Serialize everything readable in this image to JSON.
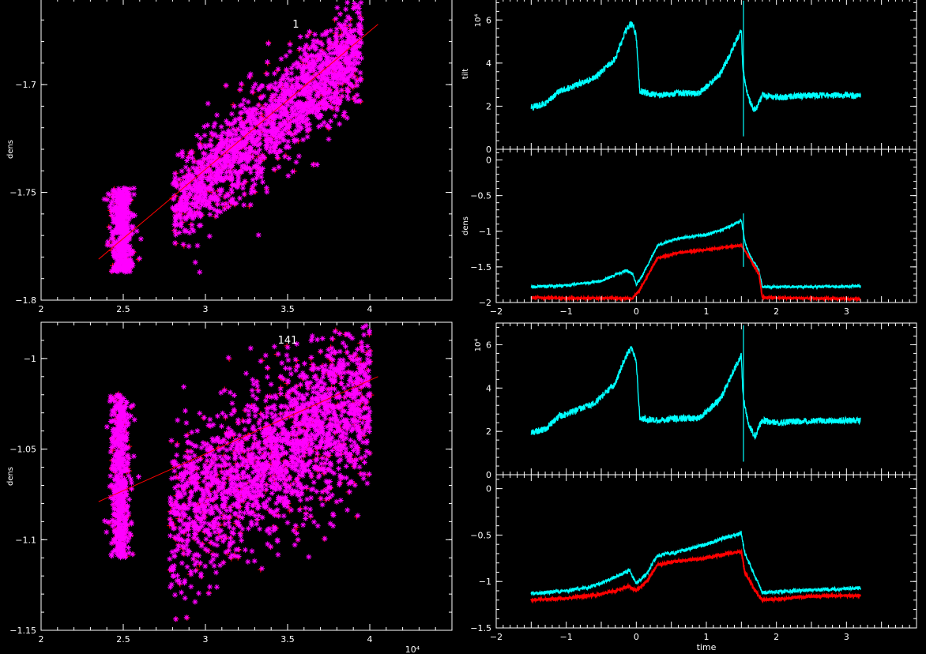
{
  "colors": {
    "background": "#000000",
    "axis": "#ffffff",
    "scatter_star": "#ff00ff",
    "scatter_plus": "#ff0000",
    "fit_line": "#ff0000",
    "series_cyan": "#00ffff",
    "series_red": "#ff0000"
  },
  "chart_data": [
    {
      "id": "scatter-top",
      "type": "scatter",
      "annotation": "1",
      "xlabel": "",
      "ylabel": "dens",
      "xlim": [
        2,
        4.5
      ],
      "ylim": [
        -1.8,
        -1.66
      ],
      "xticks": [
        "2",
        "2.5",
        "3",
        "3.5",
        "4"
      ],
      "xtick_values": [
        2,
        2.5,
        3,
        3.5,
        4
      ],
      "yticks": [
        "−1.8",
        "−1.75",
        "−1.7"
      ],
      "ytick_values": [
        -1.8,
        -1.75,
        -1.7
      ],
      "clusters": [
        {
          "x_center": 2.49,
          "x_spread": 0.055,
          "y_min": -1.787,
          "y_max": -1.748,
          "count": 450
        },
        {
          "x_min": 2.8,
          "x_max": 3.95,
          "y_at_xmin": -1.758,
          "y_at_xmax": -1.68,
          "band": 0.011,
          "count": 1600
        }
      ],
      "fit": {
        "x": [
          2.35,
          4.05
        ],
        "y": [
          -1.781,
          -1.672
        ]
      }
    },
    {
      "id": "timeseries-top-a",
      "type": "line",
      "xlabel": "",
      "ylabel": "tilt",
      "yscale_label": "10⁴",
      "xlim": [
        -2,
        4
      ],
      "ylim": [
        0,
        7
      ],
      "yticks": [
        "0",
        "2",
        "4",
        "6"
      ],
      "ytick_values": [
        0,
        2,
        4,
        6
      ],
      "series": [
        {
          "color": "cyan",
          "x": [
            -1.5,
            -1.3,
            -1.2,
            -1.1,
            -1.0,
            -0.6,
            -0.3,
            -0.15,
            -0.08,
            -0.05,
            0.0,
            0.05,
            0.3,
            0.6,
            0.9,
            1.2,
            1.35,
            1.45,
            1.5,
            1.52,
            1.55,
            1.6,
            1.65,
            1.7,
            1.75,
            1.8,
            2.0,
            2.5,
            3.0,
            3.2
          ],
          "y": [
            1.95,
            2.1,
            2.4,
            2.7,
            2.8,
            3.3,
            4.2,
            5.5,
            5.8,
            5.8,
            5.2,
            2.7,
            2.5,
            2.6,
            2.6,
            3.5,
            4.5,
            5.2,
            5.5,
            3.8,
            3.1,
            2.4,
            2.0,
            1.8,
            2.2,
            2.5,
            2.4,
            2.5,
            2.5,
            2.5
          ],
          "noise": 0.15
        }
      ],
      "spikes": [
        {
          "x": 1.53,
          "y_min": 0.6,
          "y_max": 6.9
        }
      ]
    },
    {
      "id": "timeseries-top-b",
      "type": "line",
      "xlabel": "",
      "ylabel": "dens",
      "xlim": [
        -2,
        4
      ],
      "ylim": [
        -2,
        0.15
      ],
      "xticks": [
        "−2",
        "−1",
        "0",
        "1",
        "2",
        "3"
      ],
      "xtick_values": [
        -2,
        -1,
        0,
        1,
        2,
        3
      ],
      "yticks": [
        "−2",
        "−1.5",
        "−1",
        "−0.5",
        "0"
      ],
      "ytick_values": [
        -2,
        -1.5,
        -1,
        -0.5,
        0
      ],
      "series": [
        {
          "color": "cyan",
          "x": [
            -1.5,
            -1.0,
            -0.5,
            -0.15,
            -0.05,
            0.0,
            0.1,
            0.3,
            0.6,
            1.0,
            1.3,
            1.5,
            1.55,
            1.6,
            1.75,
            1.8,
            2.5,
            3.2
          ],
          "y": [
            -1.78,
            -1.76,
            -1.7,
            -1.55,
            -1.6,
            -1.75,
            -1.6,
            -1.2,
            -1.1,
            -1.05,
            -0.95,
            -0.85,
            -1.15,
            -1.3,
            -1.55,
            -1.78,
            -1.78,
            -1.77
          ],
          "noise": 0.02
        },
        {
          "color": "red",
          "x": [
            -1.5,
            -1.0,
            -0.5,
            -0.05,
            0.05,
            0.3,
            0.6,
            1.0,
            1.3,
            1.5,
            1.6,
            1.75,
            1.8,
            2.5,
            3.2
          ],
          "y": [
            -1.93,
            -1.94,
            -1.94,
            -1.94,
            -1.82,
            -1.38,
            -1.3,
            -1.26,
            -1.22,
            -1.2,
            -1.35,
            -1.6,
            -1.93,
            -1.94,
            -1.95
          ],
          "noise": 0.01
        }
      ],
      "spikes": [
        {
          "x": 1.53,
          "y_min": -1.5,
          "y_max": -0.75
        }
      ]
    },
    {
      "id": "scatter-bottom",
      "type": "scatter",
      "annotation": "141",
      "xlabel": "",
      "ylabel": "dens",
      "xscale_label": "10⁴",
      "xlim": [
        2,
        4.5
      ],
      "ylim": [
        -1.15,
        -0.98
      ],
      "xticks": [
        "2",
        "2.5",
        "3",
        "3.5",
        "4"
      ],
      "xtick_values": [
        2,
        2.5,
        3,
        3.5,
        4
      ],
      "yticks": [
        "−1.15",
        "−1.1",
        "−1.05",
        "−1"
      ],
      "ytick_values": [
        -1.15,
        -1.1,
        -1.05,
        -1.0
      ],
      "clusters": [
        {
          "x_center": 2.48,
          "x_spread": 0.05,
          "y_min": -1.11,
          "y_max": -1.02,
          "count": 500
        },
        {
          "x_min": 2.78,
          "x_max": 4.0,
          "y_at_xmin": -1.09,
          "y_at_xmax": -1.02,
          "band": 0.022,
          "count": 1900
        }
      ],
      "fit": {
        "x": [
          2.35,
          4.05
        ],
        "y": [
          -1.079,
          -1.01
        ]
      }
    },
    {
      "id": "timeseries-bottom-a",
      "type": "line",
      "xlabel": "",
      "ylabel": "",
      "yscale_label": "10⁴",
      "xlim": [
        -2,
        4
      ],
      "ylim": [
        0,
        7
      ],
      "yticks": [
        "0",
        "2",
        "4",
        "6"
      ],
      "ytick_values": [
        0,
        2,
        4,
        6
      ],
      "series": [
        {
          "color": "cyan",
          "x": [
            -1.5,
            -1.3,
            -1.2,
            -1.1,
            -1.0,
            -0.6,
            -0.3,
            -0.15,
            -0.08,
            -0.05,
            0.0,
            0.05,
            0.3,
            0.6,
            0.9,
            1.2,
            1.35,
            1.45,
            1.5,
            1.52,
            1.55,
            1.6,
            1.65,
            1.7,
            1.75,
            1.8,
            2.0,
            2.5,
            3.0,
            3.2
          ],
          "y": [
            1.95,
            2.1,
            2.4,
            2.7,
            2.8,
            3.3,
            4.2,
            5.5,
            5.8,
            5.8,
            5.2,
            2.6,
            2.5,
            2.6,
            2.6,
            3.5,
            4.5,
            5.2,
            5.5,
            3.8,
            3.1,
            2.4,
            2.0,
            1.8,
            2.2,
            2.5,
            2.4,
            2.5,
            2.5,
            2.5
          ],
          "noise": 0.15
        }
      ],
      "spikes": [
        {
          "x": 1.53,
          "y_min": 0.6,
          "y_max": 6.9
        }
      ]
    },
    {
      "id": "timeseries-bottom-b",
      "type": "line",
      "xlabel": "time",
      "ylabel": "",
      "xlim": [
        -2,
        4
      ],
      "ylim": [
        -1.5,
        0.15
      ],
      "xticks": [
        "−2",
        "−1",
        "0",
        "1",
        "2",
        "3"
      ],
      "xtick_values": [
        -2,
        -1,
        0,
        1,
        2,
        3
      ],
      "yticks": [
        "−1.5",
        "−1",
        "−0.5",
        "0"
      ],
      "ytick_values": [
        -1.5,
        -1.0,
        -0.5,
        0
      ],
      "series": [
        {
          "color": "cyan",
          "x": [
            -1.5,
            -1.0,
            -0.6,
            -0.3,
            -0.1,
            0.0,
            0.15,
            0.3,
            0.6,
            1.0,
            1.3,
            1.5,
            1.55,
            1.7,
            1.8,
            2.5,
            3.2
          ],
          "y": [
            -1.13,
            -1.1,
            -1.05,
            -0.95,
            -0.88,
            -1.02,
            -0.92,
            -0.72,
            -0.68,
            -0.6,
            -0.52,
            -0.48,
            -0.7,
            -0.95,
            -1.12,
            -1.09,
            -1.07
          ],
          "noise": 0.02
        },
        {
          "color": "red",
          "x": [
            -1.5,
            -1.0,
            -0.6,
            -0.3,
            -0.1,
            0.0,
            0.15,
            0.3,
            0.6,
            1.0,
            1.3,
            1.5,
            1.55,
            1.7,
            1.8,
            2.5,
            3.2
          ],
          "y": [
            -1.2,
            -1.18,
            -1.15,
            -1.1,
            -1.05,
            -1.1,
            -1.0,
            -0.82,
            -0.78,
            -0.75,
            -0.7,
            -0.68,
            -0.9,
            -1.1,
            -1.2,
            -1.16,
            -1.15
          ],
          "noise": 0.015
        }
      ]
    }
  ]
}
